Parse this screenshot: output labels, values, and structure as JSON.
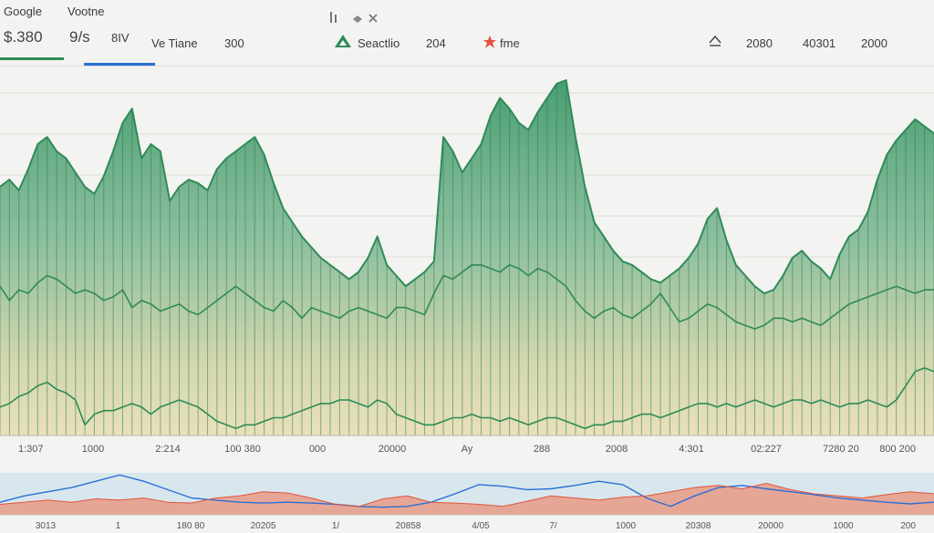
{
  "header": {
    "brand": "Google",
    "metric_label": "Vootne",
    "price": "$.380",
    "value_a": "9/s",
    "value_b": "8IV",
    "trend_label": "Ve Tiane",
    "trend_value": "300",
    "search_label": "Seactlio",
    "search_value": "204",
    "free_label": "fme",
    "stat_1": "2080",
    "stat_2": "40301",
    "stat_3": "2000",
    "icon_names": [
      "bars-icon",
      "stack-icon",
      "close-icon",
      "triangle-logo-icon",
      "star-icon",
      "caret-up-icon"
    ],
    "colors": {
      "green": "#2e8b57",
      "blue": "#2a6fd6",
      "red": "#e0533a"
    }
  },
  "chart_data": [
    {
      "type": "area",
      "title": "",
      "xlabel": "",
      "ylabel": "",
      "x_tick_labels": [
        "1:307",
        "1000",
        "2:214",
        "100 380",
        "000",
        "20000",
        "Ay",
        "288",
        "2008",
        "4:301",
        "02:227",
        "7280 20",
        "800 200"
      ],
      "ylim": [
        0,
        100
      ],
      "grid": true,
      "series": [
        {
          "color": "#2e8b57",
          "values": [
            70,
            72,
            69,
            75,
            82,
            84,
            80,
            78,
            74,
            70,
            68,
            73,
            80,
            88,
            92,
            78,
            82,
            80,
            66,
            70,
            72,
            71,
            69,
            75,
            78,
            80,
            82,
            84,
            79,
            71,
            64,
            60,
            56,
            53,
            50,
            48,
            46,
            44,
            46,
            50,
            56,
            48,
            45,
            42,
            44,
            46,
            49,
            84,
            80,
            74,
            78,
            82,
            90,
            95,
            92,
            88,
            86,
            91,
            95,
            99,
            100,
            84,
            70,
            60,
            56,
            52,
            49,
            48,
            46,
            44,
            43,
            45,
            47,
            50,
            54,
            61,
            64,
            55,
            48,
            45,
            42,
            40,
            41,
            45,
            50,
            52,
            49,
            47,
            44,
            51,
            56,
            58,
            63,
            72,
            79,
            83,
            86,
            89,
            87,
            85
          ]
        },
        {
          "color": "#2e8b57",
          "values": [
            42,
            38,
            41,
            40,
            43,
            45,
            44,
            42,
            40,
            41,
            40,
            38,
            39,
            41,
            36,
            38,
            37,
            35,
            36,
            37,
            35,
            34,
            36,
            38,
            40,
            42,
            40,
            38,
            36,
            35,
            38,
            36,
            33,
            36,
            35,
            34,
            33,
            35,
            36,
            35,
            34,
            33,
            36,
            36,
            35,
            34,
            40,
            45,
            44,
            46,
            48,
            48,
            47,
            46,
            48,
            47,
            45,
            47,
            46,
            44,
            42,
            38,
            35,
            33,
            35,
            36,
            34,
            33,
            35,
            37,
            40,
            36,
            32,
            33,
            35,
            37,
            36,
            34,
            32,
            31,
            30,
            31,
            33,
            33,
            32,
            33,
            32,
            31,
            33,
            35,
            37,
            38,
            39,
            40,
            41,
            42,
            41,
            40,
            41,
            41
          ]
        },
        {
          "color": "#2e8b57",
          "values": [
            8,
            9,
            11,
            12,
            14,
            15,
            13,
            12,
            10,
            3,
            6,
            7,
            7,
            8,
            9,
            8,
            6,
            8,
            9,
            10,
            9,
            8,
            6,
            4,
            3,
            2,
            3,
            3,
            4,
            5,
            5,
            6,
            7,
            8,
            9,
            9,
            10,
            10,
            9,
            8,
            10,
            9,
            6,
            5,
            4,
            3,
            3,
            4,
            5,
            5,
            6,
            5,
            5,
            4,
            5,
            4,
            3,
            4,
            5,
            5,
            4,
            3,
            2,
            3,
            3,
            4,
            4,
            5,
            6,
            6,
            5,
            6,
            7,
            8,
            9,
            9,
            8,
            9,
            8,
            9,
            10,
            9,
            8,
            9,
            10,
            10,
            9,
            10,
            9,
            8,
            9,
            9,
            10,
            9,
            8,
            10,
            14,
            18,
            19,
            18
          ]
        }
      ]
    },
    {
      "type": "area",
      "title": "",
      "xlabel": "",
      "ylabel": "",
      "x_tick_labels": [
        "3013",
        "1",
        "180 80",
        "20205",
        "1/",
        "20858",
        "4/05",
        "7/",
        "1000",
        "20308",
        "20000",
        "1000",
        "200"
      ],
      "ylim": [
        0,
        100
      ],
      "series": [
        {
          "color": "#2a6fd6",
          "values": [
            30,
            45,
            55,
            65,
            80,
            95,
            80,
            60,
            40,
            35,
            30,
            28,
            30,
            28,
            25,
            20,
            18,
            20,
            30,
            50,
            72,
            68,
            60,
            62,
            70,
            80,
            72,
            40,
            20,
            45,
            65,
            70,
            62,
            55,
            48,
            40,
            35,
            30,
            26,
            30
          ]
        },
        {
          "color": "#e0533a",
          "values": [
            25,
            30,
            35,
            30,
            38,
            35,
            40,
            30,
            28,
            40,
            45,
            55,
            52,
            40,
            25,
            20,
            38,
            45,
            30,
            28,
            25,
            20,
            32,
            45,
            40,
            35,
            42,
            45,
            55,
            65,
            70,
            62,
            75,
            60,
            50,
            45,
            40,
            48,
            55,
            50
          ]
        }
      ]
    }
  ]
}
